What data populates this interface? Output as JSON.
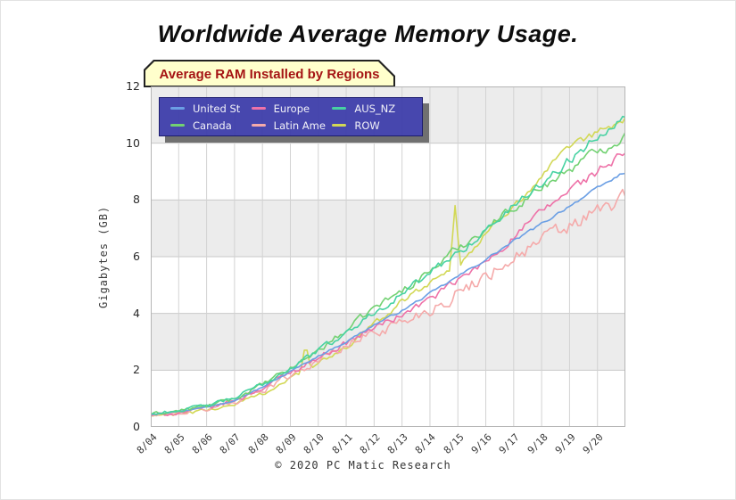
{
  "page": {
    "title": "Worldwide Average Memory Usage.",
    "caption": "© 2020 PC Matic Research"
  },
  "style": {
    "badge_bg": "#ffffcc",
    "badge_border": "#222222",
    "badge_text": "#a51414",
    "legend_bg": "rgba(56,56,168,0.92)",
    "legend_border": "#1b1b6e",
    "legend_shadow": "#707070",
    "band_gray": "#ececec",
    "grid_color": "#d2d2d2",
    "hgrid_color": "#c9c9c9",
    "axis_color": "#b5b5b5"
  },
  "chart_data": {
    "type": "line",
    "title": "Average RAM Installed by Regions",
    "xlabel": "",
    "ylabel": "Gigabytes (GB)",
    "ylim": [
      0,
      12
    ],
    "yticks": [
      0,
      2,
      4,
      6,
      8,
      10,
      12
    ],
    "grid": true,
    "plot_bands": "alternating 2-GB gray/white horizontal bands",
    "legend_position": "top-left, 3 columns x 2 rows",
    "categories": [
      "8/04",
      "8/05",
      "8/06",
      "8/07",
      "8/08",
      "8/09",
      "8/10",
      "8/11",
      "8/12",
      "8/13",
      "8/14",
      "8/15",
      "9/16",
      "9/17",
      "9/18",
      "9/19",
      "9/20"
    ],
    "series": [
      {
        "name": "United St",
        "color": "#6b9fe4",
        "noise": [
          0.015,
          0.05
        ],
        "values": [
          0.45,
          0.55,
          0.7,
          0.95,
          1.4,
          1.95,
          2.5,
          3.0,
          3.6,
          4.1,
          4.7,
          5.3,
          5.9,
          6.55,
          7.15,
          7.8,
          8.4
        ]
      },
      {
        "name": "Canada",
        "color": "#72d172",
        "noise": [
          0.05,
          0.17
        ],
        "values": [
          0.45,
          0.57,
          0.73,
          1.0,
          1.48,
          2.05,
          2.7,
          3.4,
          4.2,
          4.8,
          5.5,
          6.3,
          7.0,
          7.75,
          8.45,
          9.1,
          9.7
        ]
      },
      {
        "name": "Europe",
        "color": "#ee72a8",
        "noise": [
          0.05,
          0.16
        ],
        "values": [
          0.4,
          0.5,
          0.65,
          0.92,
          1.38,
          1.92,
          2.45,
          2.95,
          3.5,
          3.95,
          4.5,
          5.15,
          5.8,
          6.7,
          7.55,
          8.35,
          9.0
        ]
      },
      {
        "name": "Latin Ame",
        "color": "#f5aaaa",
        "noise": [
          0.05,
          0.3
        ],
        "values": [
          0.38,
          0.48,
          0.62,
          0.88,
          1.32,
          1.85,
          2.35,
          2.85,
          3.35,
          3.7,
          4.15,
          4.7,
          5.35,
          6.0,
          6.55,
          7.05,
          7.55
        ]
      },
      {
        "name": "AUS_NZ",
        "color": "#47d2a2",
        "noise": [
          0.05,
          0.16
        ],
        "values": [
          0.45,
          0.58,
          0.74,
          1.02,
          1.5,
          2.08,
          2.7,
          3.3,
          4.05,
          4.7,
          5.4,
          6.15,
          6.9,
          7.8,
          8.6,
          9.4,
          10.25
        ]
      },
      {
        "name": "ROW",
        "color": "#d2d855",
        "noise": [
          0.05,
          0.14
        ],
        "spikes": [
          {
            "t": 5.55,
            "peak": 2.95
          },
          {
            "t": 10.9,
            "peak": 7.8
          }
        ],
        "values": [
          0.38,
          0.46,
          0.58,
          0.8,
          1.18,
          1.7,
          2.2,
          2.8,
          3.6,
          4.45,
          5.1,
          5.7,
          6.75,
          7.85,
          8.8,
          9.8,
          10.35
        ]
      }
    ]
  }
}
